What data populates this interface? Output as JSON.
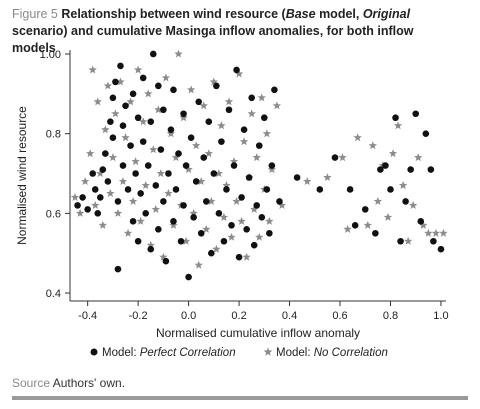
{
  "caption": {
    "label": "Figure 5",
    "title_parts": [
      {
        "text": "Relationship between wind resource (",
        "italic": false
      },
      {
        "text": "Base",
        "italic": true
      },
      {
        "text": " model, ",
        "italic": false
      },
      {
        "text": "Original",
        "italic": true
      },
      {
        "text": " scenario) and cumulative Masinga inflow anomalies, for both inflow models",
        "italic": false
      }
    ]
  },
  "source": {
    "label": "Source",
    "text": " Authors' own."
  },
  "chart_data": {
    "type": "scatter",
    "title": "",
    "xlabel": "Normalised cumulative inflow anomaly",
    "ylabel": "Normalised wind resource",
    "xlim": [
      -0.47,
      1.02
    ],
    "ylim": [
      0.38,
      1.01
    ],
    "xticks": [
      -0.4,
      -0.2,
      0.0,
      0.2,
      0.4,
      0.6,
      0.8,
      1.0
    ],
    "xtick_labels": [
      "-0.4",
      "-0.2",
      "0.0",
      "0.2",
      "0.4",
      "0.6",
      "0.8",
      "1.0"
    ],
    "yticks": [
      0.4,
      0.6,
      0.8,
      1.0
    ],
    "ytick_labels": [
      "0.4",
      "0.6",
      "0.8",
      "1.00"
    ],
    "grid": false,
    "legend": {
      "position": "bottom",
      "entries": [
        {
          "marker": "circle",
          "prefix": "Model: ",
          "name": "Perfect Correlation"
        },
        {
          "marker": "star",
          "prefix": "Model: ",
          "name": "No Correlation"
        }
      ]
    },
    "colors": {
      "perfect": "#111111",
      "no_corr": "#8c8c8c"
    },
    "series": [
      {
        "name": "Perfect Correlation",
        "marker": "circle",
        "color": "#111111",
        "points": [
          [
            -0.44,
            0.62
          ],
          [
            -0.42,
            0.64
          ],
          [
            -0.4,
            0.61
          ],
          [
            -0.38,
            0.7
          ],
          [
            -0.37,
            0.66
          ],
          [
            -0.36,
            0.6
          ],
          [
            -0.35,
            0.64
          ],
          [
            -0.34,
            0.71
          ],
          [
            -0.33,
            0.75
          ],
          [
            -0.32,
            0.68
          ],
          [
            -0.31,
            0.83
          ],
          [
            -0.3,
            0.79
          ],
          [
            -0.3,
            0.89
          ],
          [
            -0.29,
            0.93
          ],
          [
            -0.28,
            0.46
          ],
          [
            -0.28,
            0.63
          ],
          [
            -0.27,
            0.97
          ],
          [
            -0.26,
            0.72
          ],
          [
            -0.26,
            0.82
          ],
          [
            -0.25,
            0.87
          ],
          [
            -0.24,
            0.66
          ],
          [
            -0.23,
            0.77
          ],
          [
            -0.22,
            0.9
          ],
          [
            -0.22,
            0.58
          ],
          [
            -0.21,
            0.7
          ],
          [
            -0.2,
            0.84
          ],
          [
            -0.2,
            0.53
          ],
          [
            -0.19,
            0.65
          ],
          [
            -0.18,
            0.78
          ],
          [
            -0.18,
            0.94
          ],
          [
            -0.17,
            0.6
          ],
          [
            -0.16,
            0.72
          ],
          [
            -0.15,
            0.83
          ],
          [
            -0.15,
            0.51
          ],
          [
            -0.14,
            1.0
          ],
          [
            -0.13,
            0.67
          ],
          [
            -0.12,
            0.92
          ],
          [
            -0.12,
            0.56
          ],
          [
            -0.11,
            0.76
          ],
          [
            -0.1,
            0.63
          ],
          [
            -0.1,
            0.86
          ],
          [
            -0.09,
            0.48
          ],
          [
            -0.08,
            0.7
          ],
          [
            -0.07,
            0.81
          ],
          [
            -0.06,
            0.58
          ],
          [
            -0.06,
            0.91
          ],
          [
            -0.05,
            0.66
          ],
          [
            -0.04,
            0.75
          ],
          [
            -0.03,
            0.53
          ],
          [
            -0.02,
            0.85
          ],
          [
            -0.02,
            0.62
          ],
          [
            -0.01,
            0.72
          ],
          [
            0.0,
            0.44
          ],
          [
            0.01,
            0.79
          ],
          [
            0.02,
            0.59
          ],
          [
            0.03,
            0.68
          ],
          [
            0.04,
            0.88
          ],
          [
            0.05,
            0.55
          ],
          [
            0.06,
            0.74
          ],
          [
            0.07,
            0.63
          ],
          [
            0.08,
            0.83
          ],
          [
            0.09,
            0.5
          ],
          [
            0.1,
            0.7
          ],
          [
            0.11,
            0.92
          ],
          [
            0.12,
            0.6
          ],
          [
            0.13,
            0.78
          ],
          [
            0.14,
            0.53
          ],
          [
            0.15,
            0.66
          ],
          [
            0.16,
            0.86
          ],
          [
            0.17,
            0.57
          ],
          [
            0.18,
            0.72
          ],
          [
            0.19,
            0.96
          ],
          [
            0.2,
            0.49
          ],
          [
            0.21,
            0.64
          ],
          [
            0.22,
            0.81
          ],
          [
            0.23,
            0.56
          ],
          [
            0.24,
            0.69
          ],
          [
            0.25,
            0.89
          ],
          [
            0.26,
            0.52
          ],
          [
            0.27,
            0.62
          ],
          [
            0.28,
            0.77
          ],
          [
            0.29,
            0.59
          ],
          [
            0.3,
            0.84
          ],
          [
            0.31,
            0.66
          ],
          [
            0.32,
            0.55
          ],
          [
            0.33,
            0.72
          ],
          [
            0.34,
            0.91
          ],
          [
            0.36,
            0.63
          ],
          [
            0.43,
            0.69
          ],
          [
            0.52,
            0.66
          ],
          [
            0.58,
            0.74
          ],
          [
            0.64,
            0.66
          ],
          [
            0.66,
            0.57
          ],
          [
            0.7,
            0.61
          ],
          [
            0.74,
            0.55
          ],
          [
            0.76,
            0.71
          ],
          [
            0.78,
            0.72
          ],
          [
            0.8,
            0.66
          ],
          [
            0.82,
            0.84
          ],
          [
            0.84,
            0.53
          ],
          [
            0.86,
            0.63
          ],
          [
            0.88,
            0.71
          ],
          [
            0.9,
            0.85
          ],
          [
            0.92,
            0.58
          ],
          [
            0.94,
            0.8
          ],
          [
            0.96,
            0.71
          ],
          [
            0.97,
            0.53
          ],
          [
            1.0,
            0.51
          ]
        ]
      },
      {
        "name": "No Correlation",
        "marker": "star",
        "color": "#8c8c8c",
        "points": [
          [
            -0.45,
            0.64
          ],
          [
            -0.43,
            0.6
          ],
          [
            -0.41,
            0.68
          ],
          [
            -0.39,
            0.75
          ],
          [
            -0.38,
            0.96
          ],
          [
            -0.37,
            0.62
          ],
          [
            -0.36,
            0.88
          ],
          [
            -0.35,
            0.7
          ],
          [
            -0.34,
            0.57
          ],
          [
            -0.33,
            0.81
          ],
          [
            -0.32,
            0.92
          ],
          [
            -0.31,
            0.65
          ],
          [
            -0.3,
            0.74
          ],
          [
            -0.29,
            0.85
          ],
          [
            -0.28,
            0.6
          ],
          [
            -0.27,
            0.93
          ],
          [
            -0.26,
            0.68
          ],
          [
            -0.25,
            0.79
          ],
          [
            -0.24,
            0.55
          ],
          [
            -0.23,
            0.88
          ],
          [
            -0.22,
            0.63
          ],
          [
            -0.21,
            0.73
          ],
          [
            -0.2,
            0.96
          ],
          [
            -0.19,
            0.58
          ],
          [
            -0.18,
            0.83
          ],
          [
            -0.17,
            0.67
          ],
          [
            -0.16,
            0.9
          ],
          [
            -0.15,
            0.52
          ],
          [
            -0.14,
            0.76
          ],
          [
            -0.13,
            0.61
          ],
          [
            -0.12,
            0.86
          ],
          [
            -0.11,
            0.7
          ],
          [
            -0.1,
            0.49
          ],
          [
            -0.09,
            0.94
          ],
          [
            -0.08,
            0.65
          ],
          [
            -0.07,
            0.8
          ],
          [
            -0.06,
            0.57
          ],
          [
            -0.05,
            0.74
          ],
          [
            -0.04,
            1.0
          ],
          [
            -0.03,
            0.62
          ],
          [
            -0.02,
            0.84
          ],
          [
            -0.01,
            0.53
          ],
          [
            0.0,
            0.71
          ],
          [
            0.01,
            0.91
          ],
          [
            0.02,
            0.6
          ],
          [
            0.03,
            0.77
          ],
          [
            0.04,
            0.47
          ],
          [
            0.05,
            0.68
          ],
          [
            0.06,
            0.87
          ],
          [
            0.07,
            0.56
          ],
          [
            0.08,
            0.75
          ],
          [
            0.09,
            0.63
          ],
          [
            0.1,
            0.93
          ],
          [
            0.11,
            0.51
          ],
          [
            0.12,
            0.7
          ],
          [
            0.13,
            0.82
          ],
          [
            0.14,
            0.59
          ],
          [
            0.15,
            0.67
          ],
          [
            0.16,
            0.88
          ],
          [
            0.17,
            0.54
          ],
          [
            0.18,
            0.73
          ],
          [
            0.19,
            0.63
          ],
          [
            0.2,
            0.95
          ],
          [
            0.21,
            0.58
          ],
          [
            0.22,
            0.78
          ],
          [
            0.23,
            0.49
          ],
          [
            0.24,
            0.69
          ],
          [
            0.25,
            0.85
          ],
          [
            0.26,
            0.61
          ],
          [
            0.27,
            0.74
          ],
          [
            0.28,
            0.54
          ],
          [
            0.29,
            0.89
          ],
          [
            0.3,
            0.66
          ],
          [
            0.31,
            0.8
          ],
          [
            0.32,
            0.58
          ],
          [
            0.33,
            0.71
          ],
          [
            0.35,
            0.87
          ],
          [
            0.37,
            0.62
          ],
          [
            0.47,
            0.68
          ],
          [
            0.55,
            0.69
          ],
          [
            0.61,
            0.74
          ],
          [
            0.63,
            0.56
          ],
          [
            0.67,
            0.79
          ],
          [
            0.71,
            0.57
          ],
          [
            0.73,
            0.77
          ],
          [
            0.75,
            0.63
          ],
          [
            0.77,
            0.72
          ],
          [
            0.79,
            0.59
          ],
          [
            0.81,
            0.75
          ],
          [
            0.83,
            0.82
          ],
          [
            0.85,
            0.67
          ],
          [
            0.87,
            0.53
          ],
          [
            0.89,
            0.62
          ],
          [
            0.91,
            0.74
          ],
          [
            0.93,
            0.57
          ],
          [
            0.95,
            0.55
          ],
          [
            0.98,
            0.55
          ],
          [
            1.01,
            0.55
          ]
        ]
      }
    ]
  }
}
